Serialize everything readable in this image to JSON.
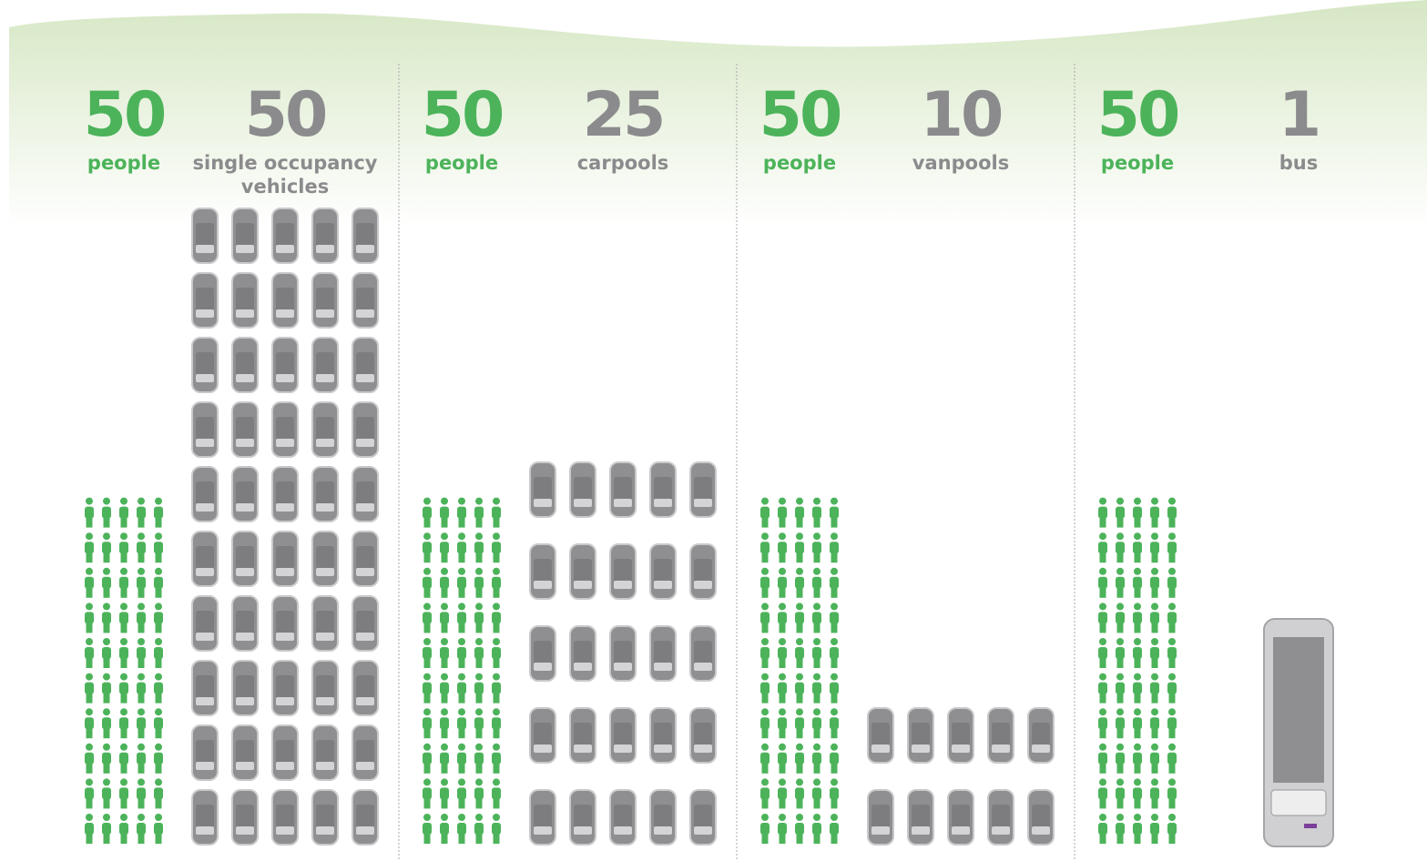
{
  "panels": [
    {
      "people": {
        "value": 50,
        "label": "people"
      },
      "vehicles": {
        "value": 50,
        "label": "single occupancy vehicles"
      }
    },
    {
      "people": {
        "value": 50,
        "label": "people"
      },
      "vehicles": {
        "value": 25,
        "label": "carpools"
      }
    },
    {
      "people": {
        "value": 50,
        "label": "people"
      },
      "vehicles": {
        "value": 10,
        "label": "vanpools"
      }
    },
    {
      "people": {
        "value": 50,
        "label": "people"
      },
      "vehicles": {
        "value": 1,
        "label": "bus"
      }
    }
  ]
}
